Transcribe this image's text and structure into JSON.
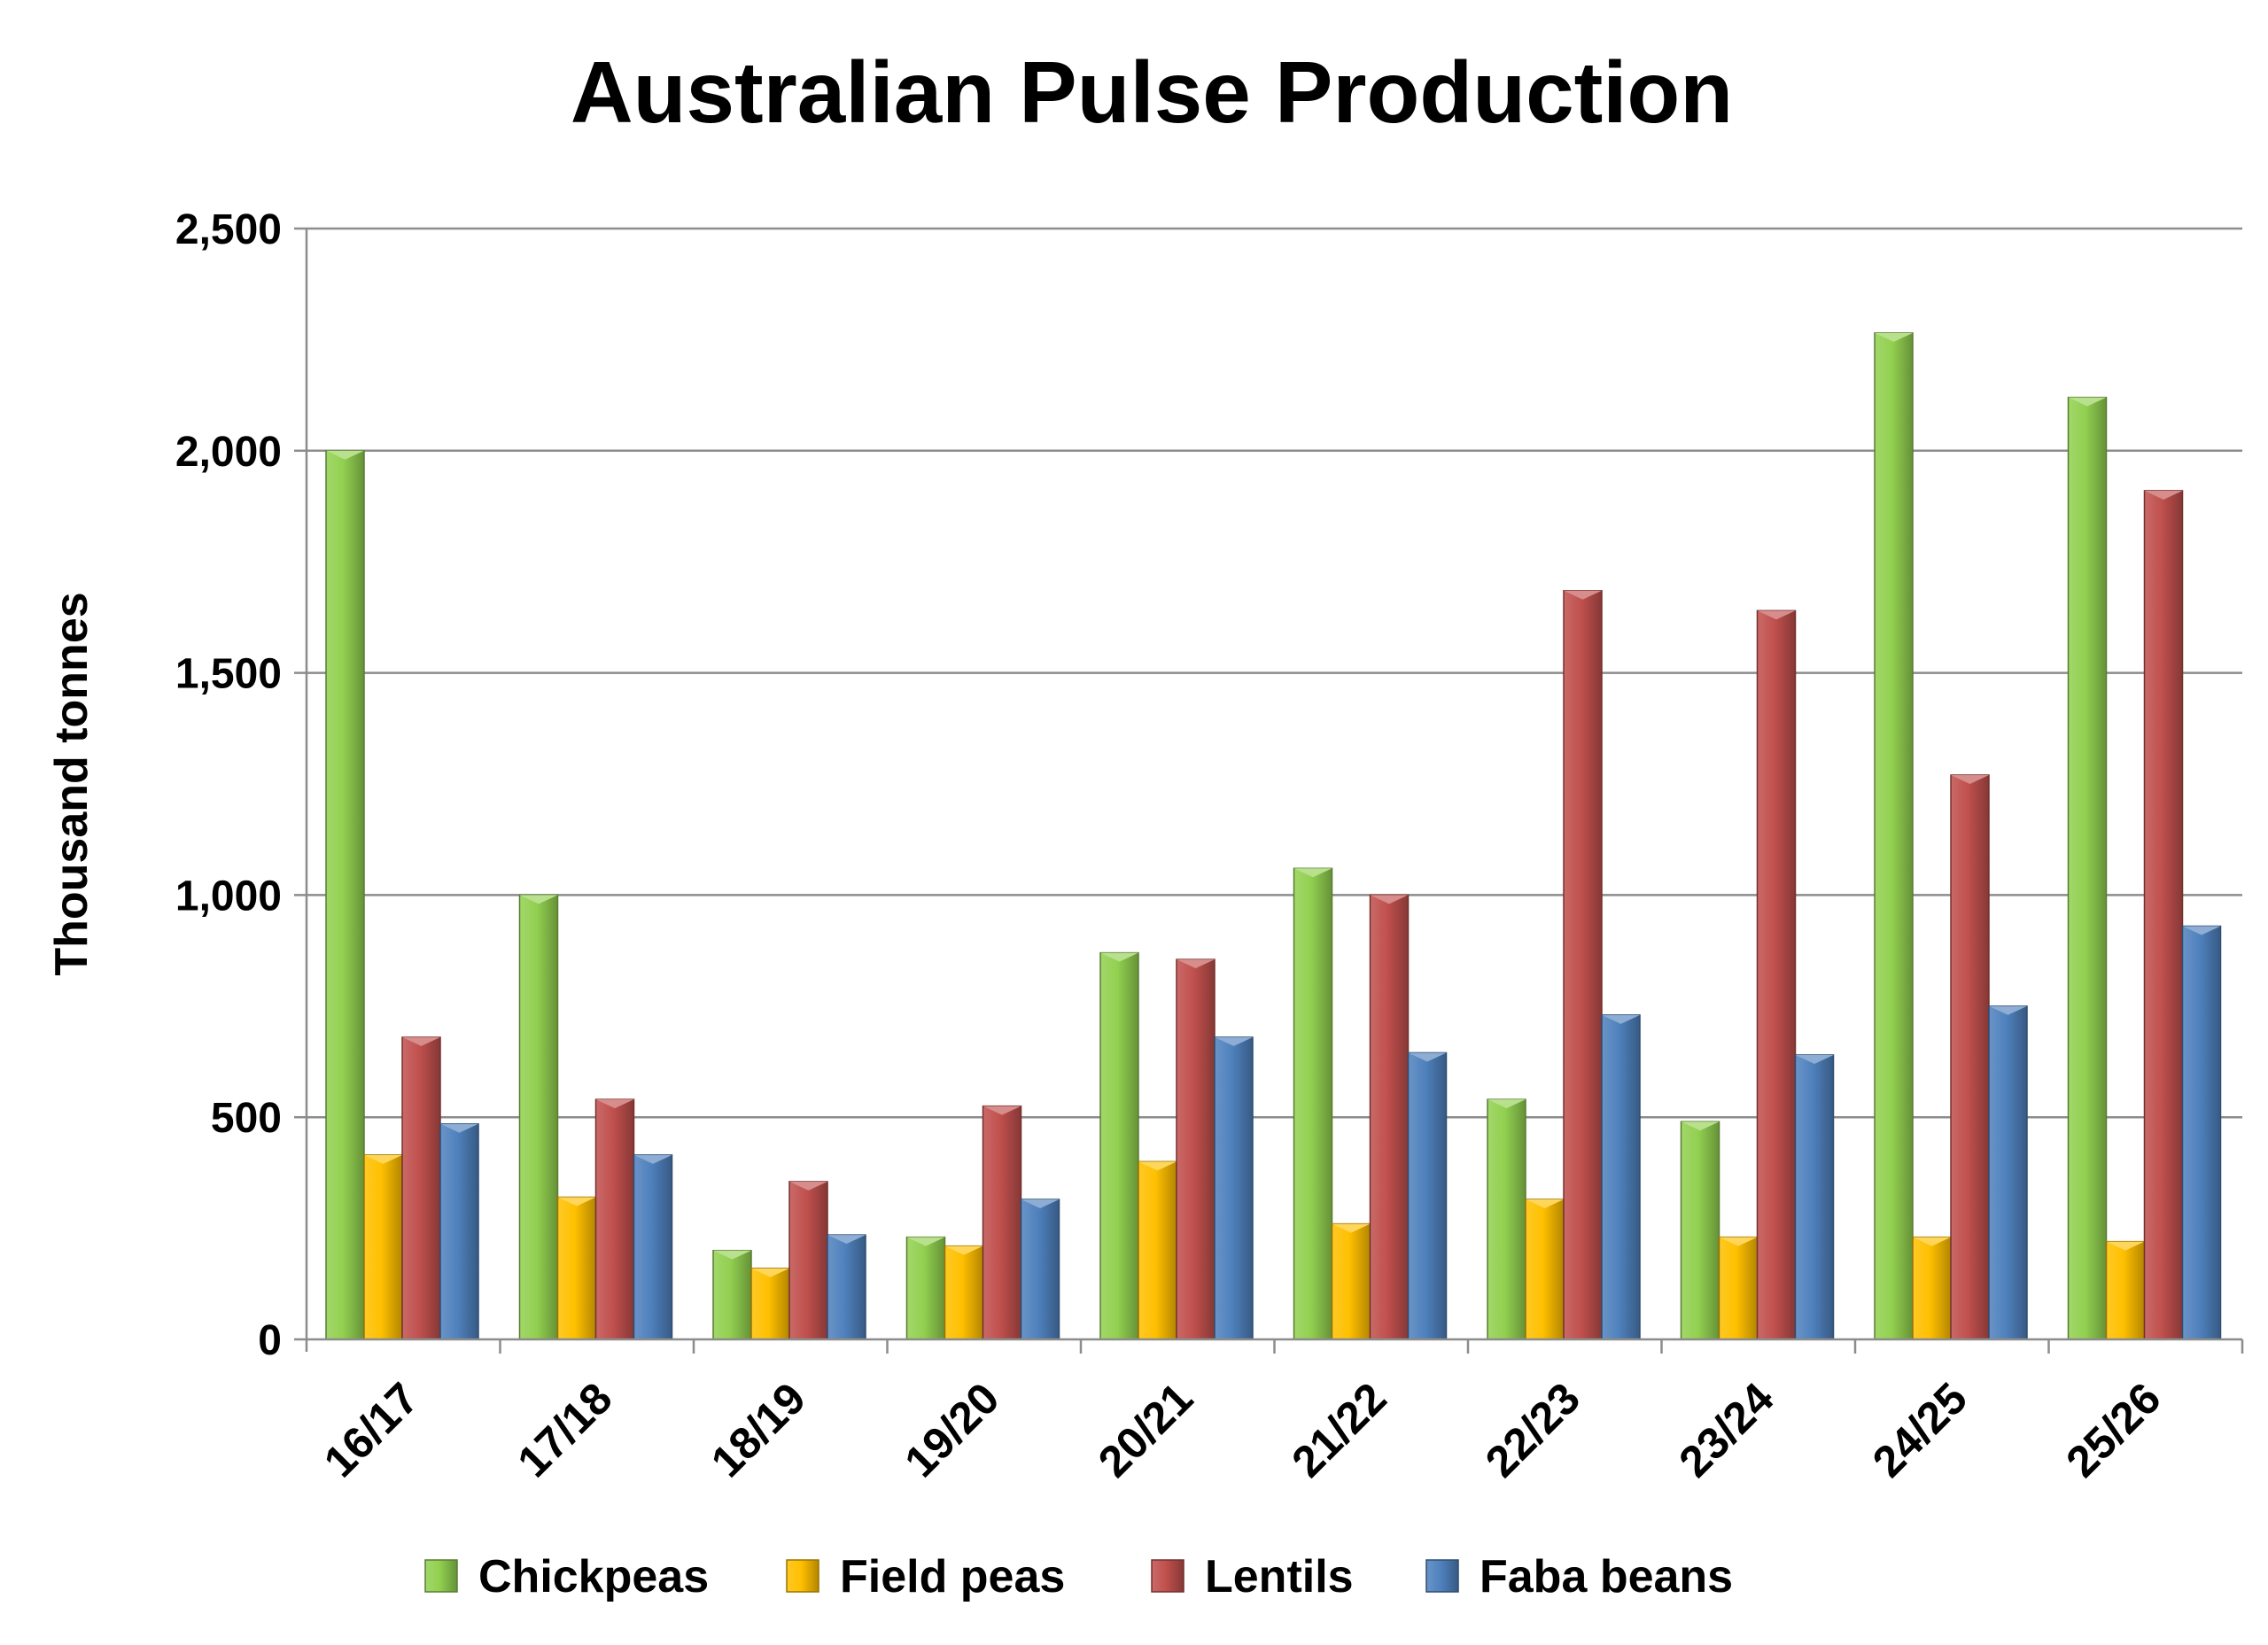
{
  "chart_data": {
    "type": "bar",
    "title": "Australian Pulse Production",
    "xlabel": "",
    "ylabel": "Thousand tonnes",
    "ylim": [
      0,
      2500
    ],
    "yticks": [
      0,
      500,
      1000,
      1500,
      2000,
      2500
    ],
    "ytick_labels": [
      "0",
      "500",
      "1,000",
      "1,500",
      "2,000",
      "2,500"
    ],
    "grid": true,
    "legend_position": "bottom",
    "categories": [
      "16/17",
      "17/18",
      "18/19",
      "19/20",
      "20/21",
      "21/22",
      "22/23",
      "23/24",
      "24/25",
      "25/26"
    ],
    "series": [
      {
        "name": "Chickpeas",
        "color": "#92d050",
        "values": [
          2000,
          1000,
          200,
          230,
          870,
          1060,
          540,
          490,
          2265,
          2120
        ]
      },
      {
        "name": "Field peas",
        "color": "#ffc000",
        "values": [
          415,
          320,
          160,
          210,
          400,
          260,
          315,
          230,
          230,
          220
        ]
      },
      {
        "name": "Lentils",
        "color": "#c0504d",
        "values": [
          680,
          540,
          355,
          525,
          855,
          1000,
          1685,
          1640,
          1270,
          1910
        ]
      },
      {
        "name": "Faba beans",
        "color": "#4f81bd",
        "values": [
          485,
          415,
          235,
          315,
          680,
          645,
          730,
          640,
          750,
          930
        ]
      }
    ]
  }
}
